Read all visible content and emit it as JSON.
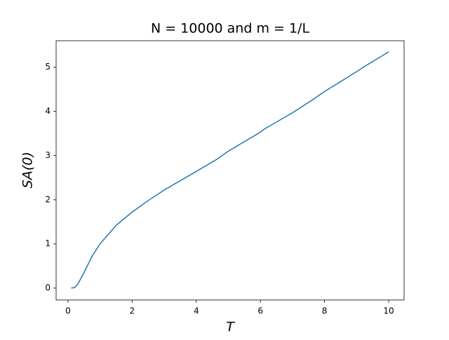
{
  "chart_data": {
    "type": "line",
    "title": "N = 10000 and m = 1/L",
    "xlabel": "T",
    "ylabel": "SA(0)",
    "x": [
      0.1,
      0.2,
      0.3,
      0.5,
      0.75,
      1,
      1.5,
      2,
      2.5,
      3,
      4,
      4.65,
      5,
      6,
      6.1,
      7,
      7.6,
      8,
      9,
      9.25,
      10
    ],
    "series": [
      {
        "color": "#1f77b4",
        "values": [
          0,
          0.01,
          0.08,
          0.35,
          0.72,
          1.0,
          1.42,
          1.72,
          1.98,
          2.22,
          2.64,
          2.92,
          3.1,
          3.53,
          3.59,
          3.97,
          4.25,
          4.45,
          4.9,
          5.02,
          5.35
        ]
      }
    ],
    "xlim": [
      -0.37,
      10.48
    ],
    "ylim": [
      -0.27,
      5.6
    ],
    "xticks": [
      0,
      2,
      4,
      6,
      8,
      10
    ],
    "yticks": [
      0,
      1,
      2,
      3,
      4,
      5
    ]
  }
}
